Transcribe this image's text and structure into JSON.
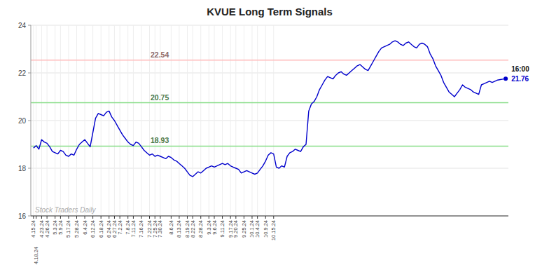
{
  "chart_data": {
    "type": "line",
    "title": "KVUE Long Term Signals",
    "ylim": [
      16,
      24
    ],
    "yticks": [
      16,
      18,
      20,
      22,
      24
    ],
    "grid": true,
    "watermark": "Stock Traders Daily",
    "annotations": [
      {
        "y": 22.54,
        "label": "22.54",
        "color": "#ffbbbb"
      },
      {
        "y": 20.75,
        "label": "20.75",
        "color": "#88dd88"
      },
      {
        "y": 18.93,
        "label": "18.93",
        "color": "#88dd88"
      }
    ],
    "last_point": {
      "value": 21.76,
      "label": "21.76",
      "time": "16:00"
    },
    "categories": [
      "4.15.24",
      "4.18.24",
      null,
      "4.23.24",
      null,
      "4.26.24",
      null,
      null,
      "5.3.24",
      null,
      "5.9.24",
      null,
      null,
      "5.17.24",
      null,
      null,
      "5.28.24",
      null,
      null,
      "6.4.24",
      null,
      null,
      "6.12.24",
      null,
      null,
      "6.18.24",
      null,
      null,
      "6.24.24",
      null,
      "6.27.24",
      null,
      "7.2.24",
      null,
      null,
      "7.8.24",
      null,
      "7.11.24",
      null,
      null,
      "7.16.24",
      null,
      null,
      "7.22.24",
      null,
      "7.25.24",
      null,
      "7.30.24",
      null,
      null,
      null,
      "8.6.24",
      null,
      null,
      "8.13.24",
      null,
      null,
      "8.19.24",
      null,
      "8.22.24",
      null,
      null,
      "8.28.24",
      null,
      null,
      "9.3.24",
      null,
      "9.6.24",
      null,
      null,
      "9.11.24",
      null,
      null,
      "9.17.24",
      null,
      "9.20.24",
      null,
      null,
      "9.25.24",
      null,
      null,
      "10.1.24",
      null,
      "10.4.24",
      null,
      null,
      "10.9.24",
      null,
      null,
      "10.15.24",
      null,
      null,
      null,
      null,
      null,
      null,
      null,
      null,
      null,
      null,
      null,
      null,
      null,
      null,
      null,
      null,
      null,
      null,
      null,
      null,
      null,
      null,
      null,
      null,
      null,
      null,
      null,
      null,
      null,
      null,
      null,
      null,
      null,
      null,
      null,
      null,
      null,
      null,
      null,
      null,
      null,
      null,
      null,
      null,
      null,
      null,
      null,
      null,
      null,
      null,
      null,
      null,
      null,
      null,
      null,
      null,
      null,
      null,
      null,
      null,
      null,
      null,
      null,
      null,
      null,
      null,
      null,
      null,
      null,
      null,
      null,
      null,
      null,
      null,
      null,
      null,
      null,
      null,
      null,
      null,
      null,
      null,
      null,
      null,
      null,
      null
    ],
    "series": [
      {
        "color": "#0000cc",
        "values": [
          18.85,
          18.95,
          18.8,
          19.2,
          19.1,
          19.05,
          18.9,
          18.7,
          18.65,
          18.6,
          18.75,
          18.7,
          18.55,
          18.5,
          18.6,
          18.55,
          18.8,
          19.0,
          19.1,
          19.2,
          19.05,
          18.9,
          19.5,
          20.1,
          20.3,
          20.25,
          20.2,
          20.35,
          20.4,
          20.15,
          20.0,
          19.8,
          19.6,
          19.4,
          19.25,
          19.1,
          19.0,
          18.95,
          19.1,
          19.05,
          18.9,
          18.75,
          18.65,
          18.55,
          18.6,
          18.5,
          18.55,
          18.5,
          18.45,
          18.4,
          18.5,
          18.45,
          18.35,
          18.3,
          18.2,
          18.1,
          18.0,
          17.85,
          17.7,
          17.65,
          17.75,
          17.85,
          17.8,
          17.9,
          18.0,
          18.05,
          18.1,
          18.05,
          18.1,
          18.15,
          18.2,
          18.15,
          18.2,
          18.1,
          18.05,
          18.0,
          17.95,
          17.8,
          17.85,
          17.9,
          17.85,
          17.8,
          17.75,
          17.8,
          17.95,
          18.1,
          18.3,
          18.55,
          18.65,
          18.6,
          18.05,
          18.0,
          18.1,
          18.05,
          18.5,
          18.65,
          18.7,
          18.8,
          18.75,
          18.7,
          18.9,
          19.0,
          20.4,
          20.7,
          20.8,
          21.0,
          21.3,
          21.5,
          21.7,
          21.85,
          21.8,
          21.75,
          21.9,
          22.0,
          22.05,
          21.95,
          21.9,
          22.0,
          22.1,
          22.2,
          22.3,
          22.35,
          22.25,
          22.15,
          22.1,
          22.3,
          22.5,
          22.7,
          22.9,
          23.05,
          23.1,
          23.15,
          23.2,
          23.3,
          23.35,
          23.3,
          23.2,
          23.15,
          23.25,
          23.3,
          23.2,
          23.1,
          23.05,
          23.2,
          23.25,
          23.2,
          23.1,
          22.8,
          22.6,
          22.3,
          22.1,
          21.9,
          21.6,
          21.4,
          21.2,
          21.1,
          21.0,
          21.15,
          21.3,
          21.5,
          21.4,
          21.35,
          21.3,
          21.2,
          21.15,
          21.1,
          21.5,
          21.55,
          21.6,
          21.65,
          21.6,
          21.65,
          21.7,
          21.72,
          21.74,
          21.76
        ]
      }
    ]
  }
}
